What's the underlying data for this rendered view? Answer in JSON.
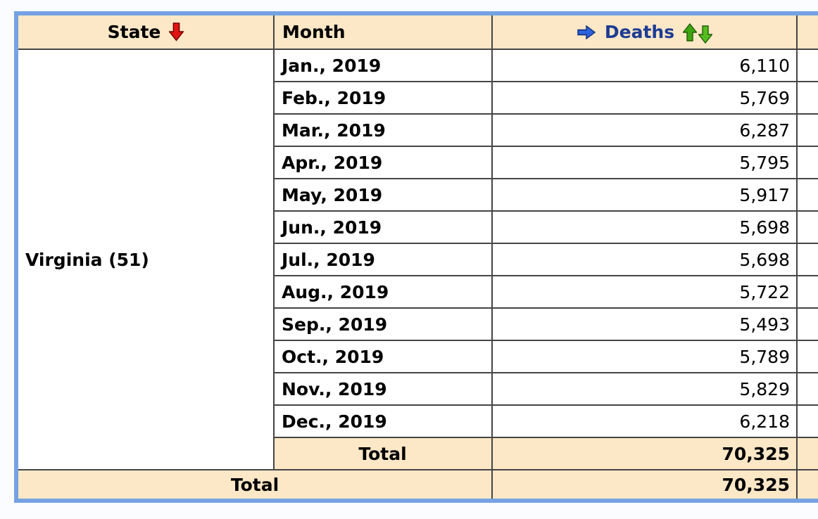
{
  "page": {
    "background": "#FAFCFF"
  },
  "table": {
    "frame_color": "#75A2E2",
    "header_bg": "#FCE7C6",
    "grid_color": "#454545",
    "deaths_label_color": "#1C3C94",
    "icon_colors": {
      "red_down_arrow": "#E21313",
      "blue_right_arrow": "#2D62DC",
      "green_up_arrow": "#3DA412",
      "green_down_arrow": "#55BE1E"
    },
    "columns": {
      "state": {
        "label": "State",
        "sort_icon": "red-down-arrow"
      },
      "month": {
        "label": "Month"
      },
      "deaths": {
        "label": "Deaths",
        "leading_icon": "blue-right-arrow",
        "sort_icons": [
          "green-up-arrow",
          "green-down-arrow"
        ]
      }
    },
    "group": {
      "state": "Virginia (51)",
      "rows": [
        {
          "month": "Jan., 2019",
          "deaths": "6,110"
        },
        {
          "month": "Feb., 2019",
          "deaths": "5,769"
        },
        {
          "month": "Mar., 2019",
          "deaths": "6,287"
        },
        {
          "month": "Apr., 2019",
          "deaths": "5,795"
        },
        {
          "month": "May, 2019",
          "deaths": "5,917"
        },
        {
          "month": "Jun., 2019",
          "deaths": "5,698"
        },
        {
          "month": "Jul., 2019",
          "deaths": "5,698"
        },
        {
          "month": "Aug., 2019",
          "deaths": "5,722"
        },
        {
          "month": "Sep., 2019",
          "deaths": "5,493"
        },
        {
          "month": "Oct., 2019",
          "deaths": "5,789"
        },
        {
          "month": "Nov., 2019",
          "deaths": "5,829"
        },
        {
          "month": "Dec., 2019",
          "deaths": "6,218"
        }
      ],
      "total_label": "Total",
      "total_deaths": "70,325"
    },
    "grand_total": {
      "label": "Total",
      "deaths": "70,325"
    }
  }
}
